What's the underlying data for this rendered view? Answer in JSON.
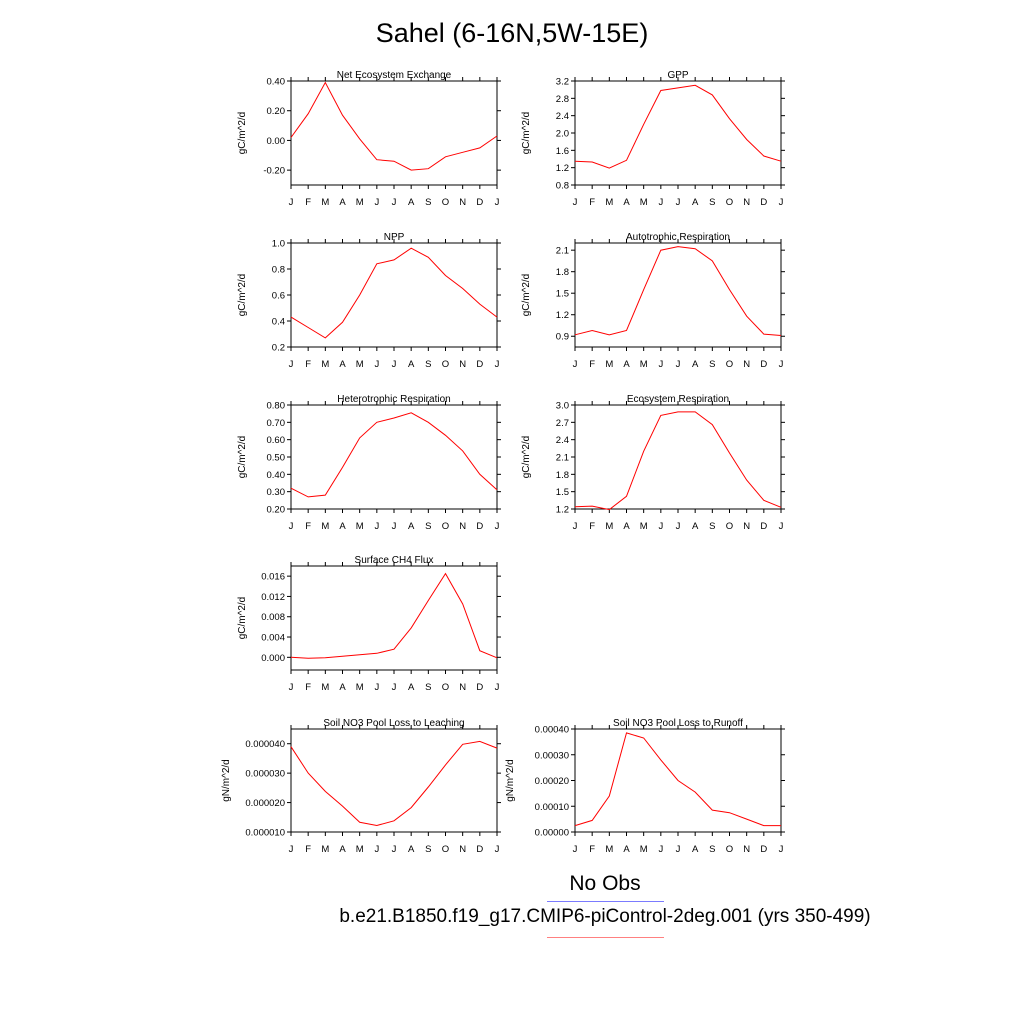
{
  "title": "Sahel (6-16N,5W-15E)",
  "colors": {
    "series": "#ff0000",
    "axis": "#000000",
    "obs_line": "#7b7bff",
    "model_line": "#ff8080"
  },
  "legend": {
    "obs_label": "No Obs",
    "model_label": "b.e21.B1850.f19_g17.CMIP6-piControl-2deg.001 (yrs 350-499)"
  },
  "chart_data": [
    {
      "type": "line",
      "title": "Net Ecosystem Exchange",
      "ylabel": "gC/m^2/d",
      "x": [
        "J",
        "F",
        "M",
        "A",
        "M",
        "J",
        "J",
        "A",
        "S",
        "O",
        "N",
        "D",
        "J"
      ],
      "ylim": [
        -0.3,
        0.4
      ],
      "yticks": [
        -0.2,
        0.0,
        0.2,
        0.4
      ],
      "ytick_labels": [
        "-0.20",
        "0.00",
        "0.20",
        "0.40"
      ],
      "series": [
        {
          "values": [
            0.02,
            0.18,
            0.39,
            0.17,
            0.01,
            -0.13,
            -0.14,
            -0.2,
            -0.19,
            -0.11,
            -0.08,
            -0.05,
            0.03
          ]
        }
      ]
    },
    {
      "type": "line",
      "title": "GPP",
      "ylabel": "gC/m^2/d",
      "x": [
        "J",
        "F",
        "M",
        "A",
        "M",
        "J",
        "J",
        "A",
        "S",
        "O",
        "N",
        "D",
        "J"
      ],
      "ylim": [
        0.8,
        3.2
      ],
      "yticks": [
        0.8,
        1.2,
        1.6,
        2.0,
        2.4,
        2.8,
        3.2
      ],
      "ytick_labels": [
        "0.8",
        "1.2",
        "1.6",
        "2.0",
        "2.4",
        "2.8",
        "3.2"
      ],
      "series": [
        {
          "values": [
            1.35,
            1.33,
            1.19,
            1.37,
            2.2,
            2.98,
            3.04,
            3.1,
            2.88,
            2.33,
            1.85,
            1.47,
            1.35
          ]
        }
      ]
    },
    {
      "type": "line",
      "title": "NPP",
      "ylabel": "gC/m^2/d",
      "x": [
        "J",
        "F",
        "M",
        "A",
        "M",
        "J",
        "J",
        "A",
        "S",
        "O",
        "N",
        "D",
        "J"
      ],
      "ylim": [
        0.2,
        1.0
      ],
      "yticks": [
        0.2,
        0.4,
        0.6,
        0.8,
        1.0
      ],
      "ytick_labels": [
        "0.2",
        "0.4",
        "0.6",
        "0.8",
        "1.0"
      ],
      "series": [
        {
          "values": [
            0.43,
            0.35,
            0.27,
            0.39,
            0.6,
            0.84,
            0.87,
            0.96,
            0.89,
            0.75,
            0.65,
            0.53,
            0.43
          ]
        }
      ]
    },
    {
      "type": "line",
      "title": "Autotrophic Respiration",
      "ylabel": "gC/m^2/d",
      "x": [
        "J",
        "F",
        "M",
        "A",
        "M",
        "J",
        "J",
        "A",
        "S",
        "O",
        "N",
        "D",
        "J"
      ],
      "ylim": [
        0.75,
        2.2
      ],
      "yticks": [
        0.9,
        1.2,
        1.5,
        1.8,
        2.1
      ],
      "ytick_labels": [
        "0.9",
        "1.2",
        "1.5",
        "1.8",
        "2.1"
      ],
      "series": [
        {
          "values": [
            0.92,
            0.98,
            0.92,
            0.98,
            1.55,
            2.1,
            2.15,
            2.12,
            1.95,
            1.55,
            1.18,
            0.93,
            0.91
          ]
        }
      ]
    },
    {
      "type": "line",
      "title": "Heterotrophic Respiration",
      "ylabel": "gC/m^2/d",
      "x": [
        "J",
        "F",
        "M",
        "A",
        "M",
        "J",
        "J",
        "A",
        "S",
        "O",
        "N",
        "D",
        "J"
      ],
      "ylim": [
        0.2,
        0.8
      ],
      "yticks": [
        0.2,
        0.3,
        0.4,
        0.5,
        0.6,
        0.7,
        0.8
      ],
      "ytick_labels": [
        "0.20",
        "0.30",
        "0.40",
        "0.50",
        "0.60",
        "0.70",
        "0.80"
      ],
      "series": [
        {
          "values": [
            0.32,
            0.27,
            0.28,
            0.44,
            0.61,
            0.7,
            0.725,
            0.755,
            0.7,
            0.625,
            0.535,
            0.4,
            0.31
          ]
        }
      ]
    },
    {
      "type": "line",
      "title": "Ecosystem Respiration",
      "ylabel": "gC/m^2/d",
      "x": [
        "J",
        "F",
        "M",
        "A",
        "M",
        "J",
        "J",
        "A",
        "S",
        "O",
        "N",
        "D",
        "J"
      ],
      "ylim": [
        1.2,
        3.0
      ],
      "yticks": [
        1.2,
        1.5,
        1.8,
        2.1,
        2.4,
        2.7,
        3.0
      ],
      "ytick_labels": [
        "1.2",
        "1.5",
        "1.8",
        "2.1",
        "2.4",
        "2.7",
        "3.0"
      ],
      "series": [
        {
          "values": [
            1.24,
            1.25,
            1.19,
            1.42,
            2.2,
            2.82,
            2.88,
            2.88,
            2.66,
            2.17,
            1.7,
            1.35,
            1.23
          ]
        }
      ]
    },
    {
      "type": "line",
      "title": "Surface CH4 Flux",
      "ylabel": "gC/m^2/d",
      "x": [
        "J",
        "F",
        "M",
        "A",
        "M",
        "J",
        "J",
        "A",
        "S",
        "O",
        "N",
        "D",
        "J"
      ],
      "ylim": [
        -0.0025,
        0.018
      ],
      "yticks": [
        0.0,
        0.004,
        0.008,
        0.012,
        0.016
      ],
      "ytick_labels": [
        "0.000",
        "0.004",
        "0.008",
        "0.012",
        "0.016"
      ],
      "series": [
        {
          "values": [
            0.0,
            -0.0002,
            -0.0001,
            0.0002,
            0.0005,
            0.0008,
            0.0016,
            0.0058,
            0.0112,
            0.0165,
            0.0105,
            0.0013,
            -0.0001
          ]
        }
      ]
    },
    {
      "type": "line",
      "title": "Soil NO3 Pool Loss to Leaching",
      "ylabel": "gN/m^2/d",
      "x": [
        "J",
        "F",
        "M",
        "A",
        "M",
        "J",
        "J",
        "A",
        "S",
        "O",
        "N",
        "D",
        "J"
      ],
      "ylim": [
        1e-05,
        4.5e-05
      ],
      "yticks": [
        1e-05,
        2e-05,
        3e-05,
        4e-05
      ],
      "ytick_labels": [
        "0.000010",
        "0.000020",
        "0.000030",
        "0.000040"
      ],
      "series": [
        {
          "values": [
            3.9e-05,
            3e-05,
            2.38e-05,
            1.88e-05,
            1.33e-05,
            1.22e-05,
            1.38e-05,
            1.83e-05,
            2.53e-05,
            3.28e-05,
            3.98e-05,
            4.08e-05,
            3.85e-05
          ]
        }
      ]
    },
    {
      "type": "line",
      "title": "Soil NO3 Pool Loss to Runoff",
      "ylabel": "gN/m^2/d",
      "x": [
        "J",
        "F",
        "M",
        "A",
        "M",
        "J",
        "J",
        "A",
        "S",
        "O",
        "N",
        "D",
        "J"
      ],
      "ylim": [
        0.0,
        0.0004
      ],
      "yticks": [
        0.0,
        0.0001,
        0.0002,
        0.0003,
        0.0004
      ],
      "ytick_labels": [
        "0.00000",
        "0.00010",
        "0.00020",
        "0.00030",
        "0.00040"
      ],
      "series": [
        {
          "values": [
            2.5e-05,
            4.5e-05,
            0.00014,
            0.000385,
            0.000365,
            0.00028,
            0.0002,
            0.000155,
            8.5e-05,
            7.5e-05,
            5e-05,
            2.5e-05,
            2.5e-05
          ]
        }
      ]
    }
  ]
}
